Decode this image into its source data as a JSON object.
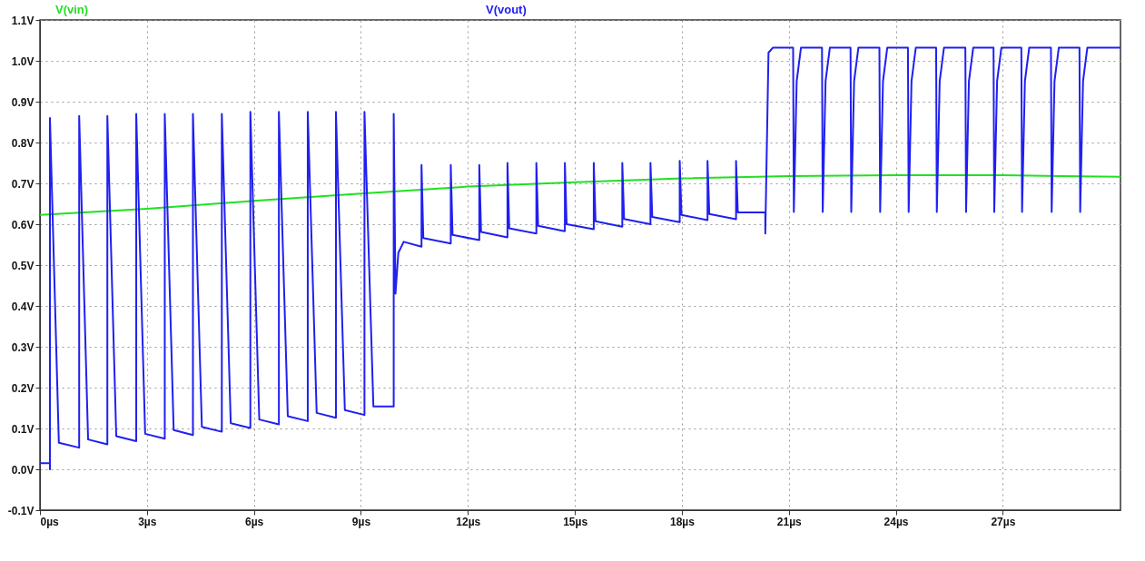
{
  "chart_data": {
    "type": "line",
    "legend": "top",
    "grid": true,
    "xlim": [
      0,
      30.3
    ],
    "xticks": [
      {
        "value": 0,
        "label": "0µs"
      },
      {
        "value": 3,
        "label": "3µs"
      },
      {
        "value": 6,
        "label": "6µs"
      },
      {
        "value": 9,
        "label": "9µs"
      },
      {
        "value": 12,
        "label": "12µs"
      },
      {
        "value": 15,
        "label": "15µs"
      },
      {
        "value": 18,
        "label": "18µs"
      },
      {
        "value": 21,
        "label": "21µs"
      },
      {
        "value": 24,
        "label": "24µs"
      },
      {
        "value": 27,
        "label": "27µs"
      }
    ],
    "ylim": [
      -0.1,
      1.1
    ],
    "yticks": [
      {
        "value": -0.1,
        "label": "-0.1V"
      },
      {
        "value": 0,
        "label": "0.0V"
      },
      {
        "value": 0.1,
        "label": "0.1V"
      },
      {
        "value": 0.2,
        "label": "0.2V"
      },
      {
        "value": 0.3,
        "label": "0.3V"
      },
      {
        "value": 0.4,
        "label": "0.4V"
      },
      {
        "value": 0.5,
        "label": "0.5V"
      },
      {
        "value": 0.6,
        "label": "0.6V"
      },
      {
        "value": 0.7,
        "label": "0.7V"
      },
      {
        "value": 0.8,
        "label": "0.8V"
      },
      {
        "value": 0.9,
        "label": "0.9V"
      },
      {
        "value": 1,
        "label": "1.0V"
      },
      {
        "value": 1.1,
        "label": "1.1V"
      }
    ],
    "series": [
      {
        "name": "V(vin)",
        "color": "#22e022",
        "x": [
          0,
          3,
          6,
          9,
          12,
          15,
          18,
          21,
          24,
          27,
          28.6,
          30.3
        ],
        "values": [
          0.623,
          0.638,
          0.657,
          0.675,
          0.692,
          0.703,
          0.712,
          0.718,
          0.72,
          0.72,
          0.718,
          0.716
        ]
      },
      {
        "name": "V(vout)",
        "color": "#2020f0",
        "x": [
          0,
          0.28,
          0.28,
          0.28,
          0.53,
          1.1,
          1.1,
          1.35,
          1.89,
          1.89,
          2.14,
          2.7,
          2.7,
          2.95,
          3.5,
          3.5,
          3.75,
          4.29,
          4.29,
          4.54,
          5.1,
          5.1,
          5.35,
          5.9,
          5.9,
          6.15,
          6.7,
          6.7,
          6.95,
          7.51,
          7.51,
          7.76,
          8.3,
          8.3,
          8.55,
          9.1,
          9.1,
          9.35,
          9.92,
          9.92,
          9.97,
          10.05,
          10.2,
          10.7,
          10.7,
          10.75,
          11.52,
          11.52,
          11.57,
          12.32,
          12.32,
          12.37,
          13.11,
          13.11,
          13.16,
          13.92,
          13.92,
          13.97,
          14.72,
          14.72,
          14.77,
          15.53,
          15.53,
          15.58,
          16.33,
          16.33,
          16.38,
          17.12,
          17.12,
          17.17,
          17.94,
          17.94,
          17.99,
          18.72,
          18.72,
          18.77,
          19.52,
          19.52,
          19.57,
          20.34,
          20.34,
          20.43,
          20.55,
          21.12,
          21.14,
          21.22,
          21.34,
          21.93,
          21.95,
          22.03,
          22.15,
          22.73,
          22.75,
          22.83,
          22.95,
          23.54,
          23.56,
          23.64,
          23.76,
          24.34,
          24.36,
          24.44,
          24.56,
          25.13,
          25.15,
          25.23,
          25.35,
          25.95,
          25.97,
          26.05,
          26.17,
          26.74,
          26.76,
          26.84,
          26.96,
          27.52,
          27.54,
          27.62,
          27.74,
          28.35,
          28.37,
          28.45,
          28.57,
          29.15,
          29.17,
          29.25,
          29.37,
          30.3
        ],
        "values": [
          0.015,
          0.015,
          0,
          0.86,
          0.065,
          0.053,
          0.865,
          0.073,
          0.061,
          0.865,
          0.081,
          0.069,
          0.87,
          0.087,
          0.075,
          0.87,
          0.096,
          0.084,
          0.87,
          0.104,
          0.092,
          0.87,
          0.113,
          0.101,
          0.875,
          0.122,
          0.11,
          0.875,
          0.13,
          0.118,
          0.875,
          0.138,
          0.126,
          0.875,
          0.145,
          0.133,
          0.875,
          0.154,
          0.154,
          0.87,
          0.43,
          0.53,
          0.557,
          0.545,
          0.745,
          0.566,
          0.553,
          0.745,
          0.574,
          0.561,
          0.745,
          0.581,
          0.568,
          0.75,
          0.59,
          0.577,
          0.75,
          0.596,
          0.583,
          0.75,
          0.6,
          0.588,
          0.75,
          0.607,
          0.594,
          0.75,
          0.613,
          0.6,
          0.75,
          0.618,
          0.605,
          0.755,
          0.623,
          0.61,
          0.755,
          0.625,
          0.612,
          0.755,
          0.629,
          0.629,
          0.577,
          1.02,
          1.032,
          1.032,
          0.63,
          0.95,
          1.032,
          1.032,
          0.63,
          0.95,
          1.032,
          1.032,
          0.63,
          0.95,
          1.032,
          1.032,
          0.63,
          0.95,
          1.032,
          1.032,
          0.63,
          0.95,
          1.032,
          1.032,
          0.63,
          0.95,
          1.032,
          1.032,
          0.63,
          0.95,
          1.032,
          1.032,
          0.63,
          0.95,
          1.032,
          1.032,
          0.63,
          0.95,
          1.032,
          1.032,
          0.63,
          0.95,
          1.032,
          1.032,
          0.63,
          0.95,
          1.032,
          1.032
        ]
      }
    ]
  }
}
